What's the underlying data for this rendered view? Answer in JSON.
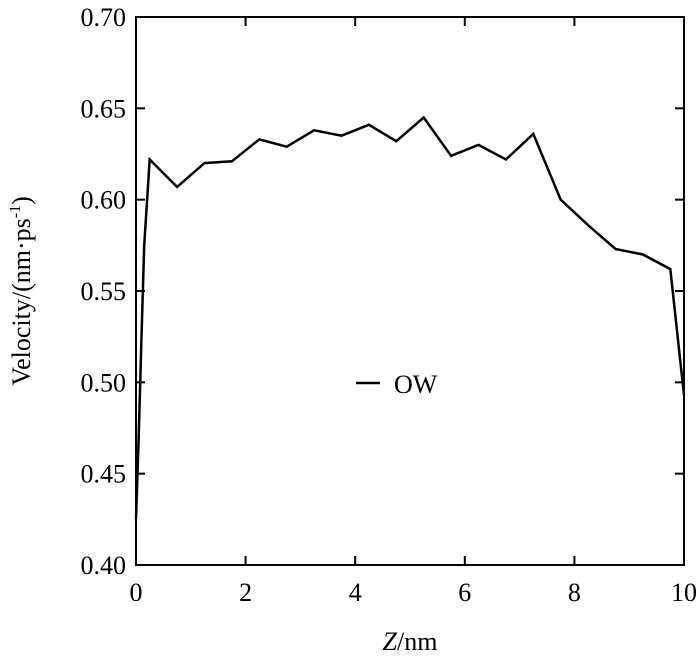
{
  "chart_data": {
    "type": "line",
    "xlabel_italic": "Z",
    "xlabel_rest": "/nm",
    "ylabel_main": "Velocity/(nm·ps",
    "ylabel_sup": "-1",
    "ylabel_close": ")",
    "xlim": [
      0,
      10
    ],
    "ylim": [
      0.4,
      0.7
    ],
    "x_ticks": [
      0,
      2,
      4,
      6,
      8,
      10
    ],
    "x_tick_labels": [
      "0",
      "2",
      "4",
      "6",
      "8",
      "10"
    ],
    "y_ticks": [
      0.4,
      0.45,
      0.5,
      0.55,
      0.6,
      0.65,
      0.7
    ],
    "y_tick_labels": [
      "0.40",
      "0.45",
      "0.50",
      "0.55",
      "0.60",
      "0.65",
      "0.70"
    ],
    "grid": false,
    "legend_position": "center",
    "series": [
      {
        "name": "OW",
        "color": "#000000",
        "x": [
          0.0,
          0.05,
          0.1,
          0.15,
          0.25,
          0.75,
          1.25,
          1.75,
          2.25,
          2.75,
          3.25,
          3.75,
          4.25,
          4.75,
          5.25,
          5.75,
          6.25,
          6.75,
          7.25,
          7.75,
          8.25,
          8.75,
          9.25,
          9.75,
          10.0
        ],
        "y": [
          0.425,
          0.47,
          0.525,
          0.575,
          0.622,
          0.607,
          0.62,
          0.621,
          0.633,
          0.629,
          0.638,
          0.635,
          0.641,
          0.632,
          0.645,
          0.624,
          0.63,
          0.622,
          0.636,
          0.6,
          0.586,
          0.573,
          0.57,
          0.562,
          0.493
        ]
      }
    ]
  }
}
